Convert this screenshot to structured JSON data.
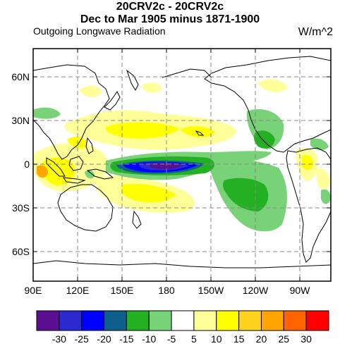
{
  "title_line1": "20CRV2c - 20CRV2c",
  "title_line2": "Dec to Mar 1905 minus 1871-1900",
  "subtitle_left": "Outgoing Longwave Radiation",
  "subtitle_right": "W/m^2",
  "lat_ticks": [
    {
      "lat": 60,
      "label": "60N"
    },
    {
      "lat": 30,
      "label": "30N"
    },
    {
      "lat": 0,
      "label": "0"
    },
    {
      "lat": -30,
      "label": "30S"
    },
    {
      "lat": -60,
      "label": "60S"
    }
  ],
  "lon_ticks": [
    {
      "lon": 90,
      "label": "90E"
    },
    {
      "lon": 120,
      "label": "120E"
    },
    {
      "lon": 150,
      "label": "150E"
    },
    {
      "lon": 180,
      "label": "180"
    },
    {
      "lon": 210,
      "label": "150W"
    },
    {
      "lon": 240,
      "label": "120W"
    },
    {
      "lon": 270,
      "label": "90W"
    }
  ],
  "map_extent": {
    "lon_min": 90,
    "lon_max": 290,
    "lat_min": -80,
    "lat_max": 80
  },
  "colorbar": {
    "labels": [
      "-30",
      "-25",
      "-20",
      "-15",
      "-10",
      "-5",
      "5",
      "10",
      "15",
      "20",
      "25",
      "30"
    ],
    "colors": [
      "#5a0f91",
      "#2a2ad0",
      "#0000ff",
      "#0f5f8c",
      "#23b123",
      "#78d278",
      "#ffffff",
      "#ffff9a",
      "#ffff00",
      "#ffd21e",
      "#ffa500",
      "#ff6400",
      "#ff0000"
    ]
  },
  "anomaly_colors": {
    "light_green": "#78d278",
    "green": "#23b123",
    "teal": "#0f5f8c",
    "blue": "#0000ff",
    "dark_blue": "#2a2ad0",
    "purple": "#5a0f91",
    "light_yellow": "#ffff9a",
    "yellow": "#ffff00",
    "orange": "#ffa500"
  }
}
